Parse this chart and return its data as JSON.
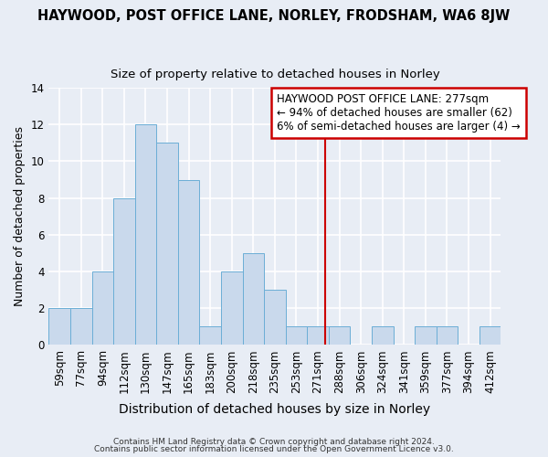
{
  "title": "HAYWOOD, POST OFFICE LANE, NORLEY, FRODSHAM, WA6 8JW",
  "subtitle": "Size of property relative to detached houses in Norley",
  "xlabel": "Distribution of detached houses by size in Norley",
  "ylabel": "Number of detached properties",
  "categories": [
    "59sqm",
    "77sqm",
    "94sqm",
    "112sqm",
    "130sqm",
    "147sqm",
    "165sqm",
    "183sqm",
    "200sqm",
    "218sqm",
    "235sqm",
    "253sqm",
    "271sqm",
    "288sqm",
    "306sqm",
    "324sqm",
    "341sqm",
    "359sqm",
    "377sqm",
    "394sqm",
    "412sqm"
  ],
  "values": [
    2,
    2,
    4,
    8,
    12,
    11,
    9,
    1,
    4,
    5,
    3,
    1,
    1,
    1,
    0,
    1,
    0,
    1,
    1,
    0,
    1
  ],
  "bar_color": "#c9d9ec",
  "bar_edge_color": "#6baed6",
  "background_color": "#e8edf5",
  "grid_color": "#ffffff",
  "ref_line_color": "#cc0000",
  "annotation_text": "HAYWOOD POST OFFICE LANE: 277sqm\n← 94% of detached houses are smaller (62)\n6% of semi-detached houses are larger (4) →",
  "annotation_box_color": "#ffffff",
  "annotation_box_edge": "#cc0000",
  "ylim": [
    0,
    14
  ],
  "yticks": [
    0,
    2,
    4,
    6,
    8,
    10,
    12,
    14
  ],
  "title_fontsize": 10.5,
  "subtitle_fontsize": 9.5,
  "xlabel_fontsize": 10,
  "ylabel_fontsize": 9,
  "tick_fontsize": 8.5,
  "ann_fontsize": 8.5,
  "footer_line1": "Contains HM Land Registry data © Crown copyright and database right 2024.",
  "footer_line2": "Contains public sector information licensed under the Open Government Licence v3.0."
}
